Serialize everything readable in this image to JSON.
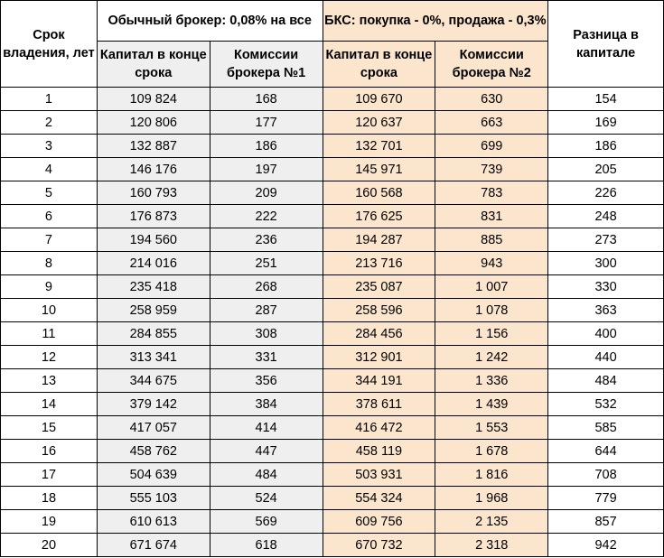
{
  "table": {
    "headers": {
      "years": "Срок владения, лет",
      "group1": "Обычный брокер: 0,08% на все",
      "group2": "БКС: покупка - 0%, продажа - 0,3%",
      "capital1": "Капитал в конце срока",
      "commission1": "Комиссии брокера №1",
      "capital2": "Капитал в конце срока",
      "commission2": "Комиссии брокера №2",
      "difference": "Разница в капитале"
    },
    "rows": [
      {
        "year": "1",
        "capital1": "109 824",
        "commission1": "168",
        "capital2": "109 670",
        "commission2": "630",
        "difference": "154"
      },
      {
        "year": "2",
        "capital1": "120 806",
        "commission1": "177",
        "capital2": "120 637",
        "commission2": "663",
        "difference": "169"
      },
      {
        "year": "3",
        "capital1": "132 887",
        "commission1": "186",
        "capital2": "132 701",
        "commission2": "699",
        "difference": "186"
      },
      {
        "year": "4",
        "capital1": "146 176",
        "commission1": "197",
        "capital2": "145 971",
        "commission2": "739",
        "difference": "205"
      },
      {
        "year": "5",
        "capital1": "160 793",
        "commission1": "209",
        "capital2": "160 568",
        "commission2": "783",
        "difference": "226"
      },
      {
        "year": "6",
        "capital1": "176 873",
        "commission1": "222",
        "capital2": "176 625",
        "commission2": "831",
        "difference": "248"
      },
      {
        "year": "7",
        "capital1": "194 560",
        "commission1": "236",
        "capital2": "194 287",
        "commission2": "885",
        "difference": "273"
      },
      {
        "year": "8",
        "capital1": "214 016",
        "commission1": "251",
        "capital2": "213 716",
        "commission2": "943",
        "difference": "300"
      },
      {
        "year": "9",
        "capital1": "235 418",
        "commission1": "268",
        "capital2": "235 087",
        "commission2": "1 007",
        "difference": "330"
      },
      {
        "year": "10",
        "capital1": "258 959",
        "commission1": "287",
        "capital2": "258 596",
        "commission2": "1 078",
        "difference": "363"
      },
      {
        "year": "11",
        "capital1": "284 855",
        "commission1": "308",
        "capital2": "284 456",
        "commission2": "1 156",
        "difference": "400"
      },
      {
        "year": "12",
        "capital1": "313 341",
        "commission1": "331",
        "capital2": "312 901",
        "commission2": "1 242",
        "difference": "440"
      },
      {
        "year": "13",
        "capital1": "344 675",
        "commission1": "356",
        "capital2": "344 191",
        "commission2": "1 336",
        "difference": "484"
      },
      {
        "year": "14",
        "capital1": "379 142",
        "commission1": "384",
        "capital2": "378 611",
        "commission2": "1 439",
        "difference": "532"
      },
      {
        "year": "15",
        "capital1": "417 057",
        "commission1": "414",
        "capital2": "416 472",
        "commission2": "1 553",
        "difference": "585"
      },
      {
        "year": "16",
        "capital1": "458 762",
        "commission1": "447",
        "capital2": "458 119",
        "commission2": "1 678",
        "difference": "644"
      },
      {
        "year": "17",
        "capital1": "504 639",
        "commission1": "484",
        "capital2": "503 931",
        "commission2": "1 816",
        "difference": "708"
      },
      {
        "year": "18",
        "capital1": "555 103",
        "commission1": "524",
        "capital2": "554 324",
        "commission2": "1 968",
        "difference": "779"
      },
      {
        "year": "19",
        "capital1": "610 613",
        "commission1": "569",
        "capital2": "609 756",
        "commission2": "2 135",
        "difference": "857"
      },
      {
        "year": "20",
        "capital1": "671 674",
        "commission1": "618",
        "capital2": "670 732",
        "commission2": "2 318",
        "difference": "942"
      }
    ]
  },
  "colors": {
    "broker1_fill": "#efefef",
    "broker2_fill": "#fce5cd",
    "border": "#000000"
  }
}
